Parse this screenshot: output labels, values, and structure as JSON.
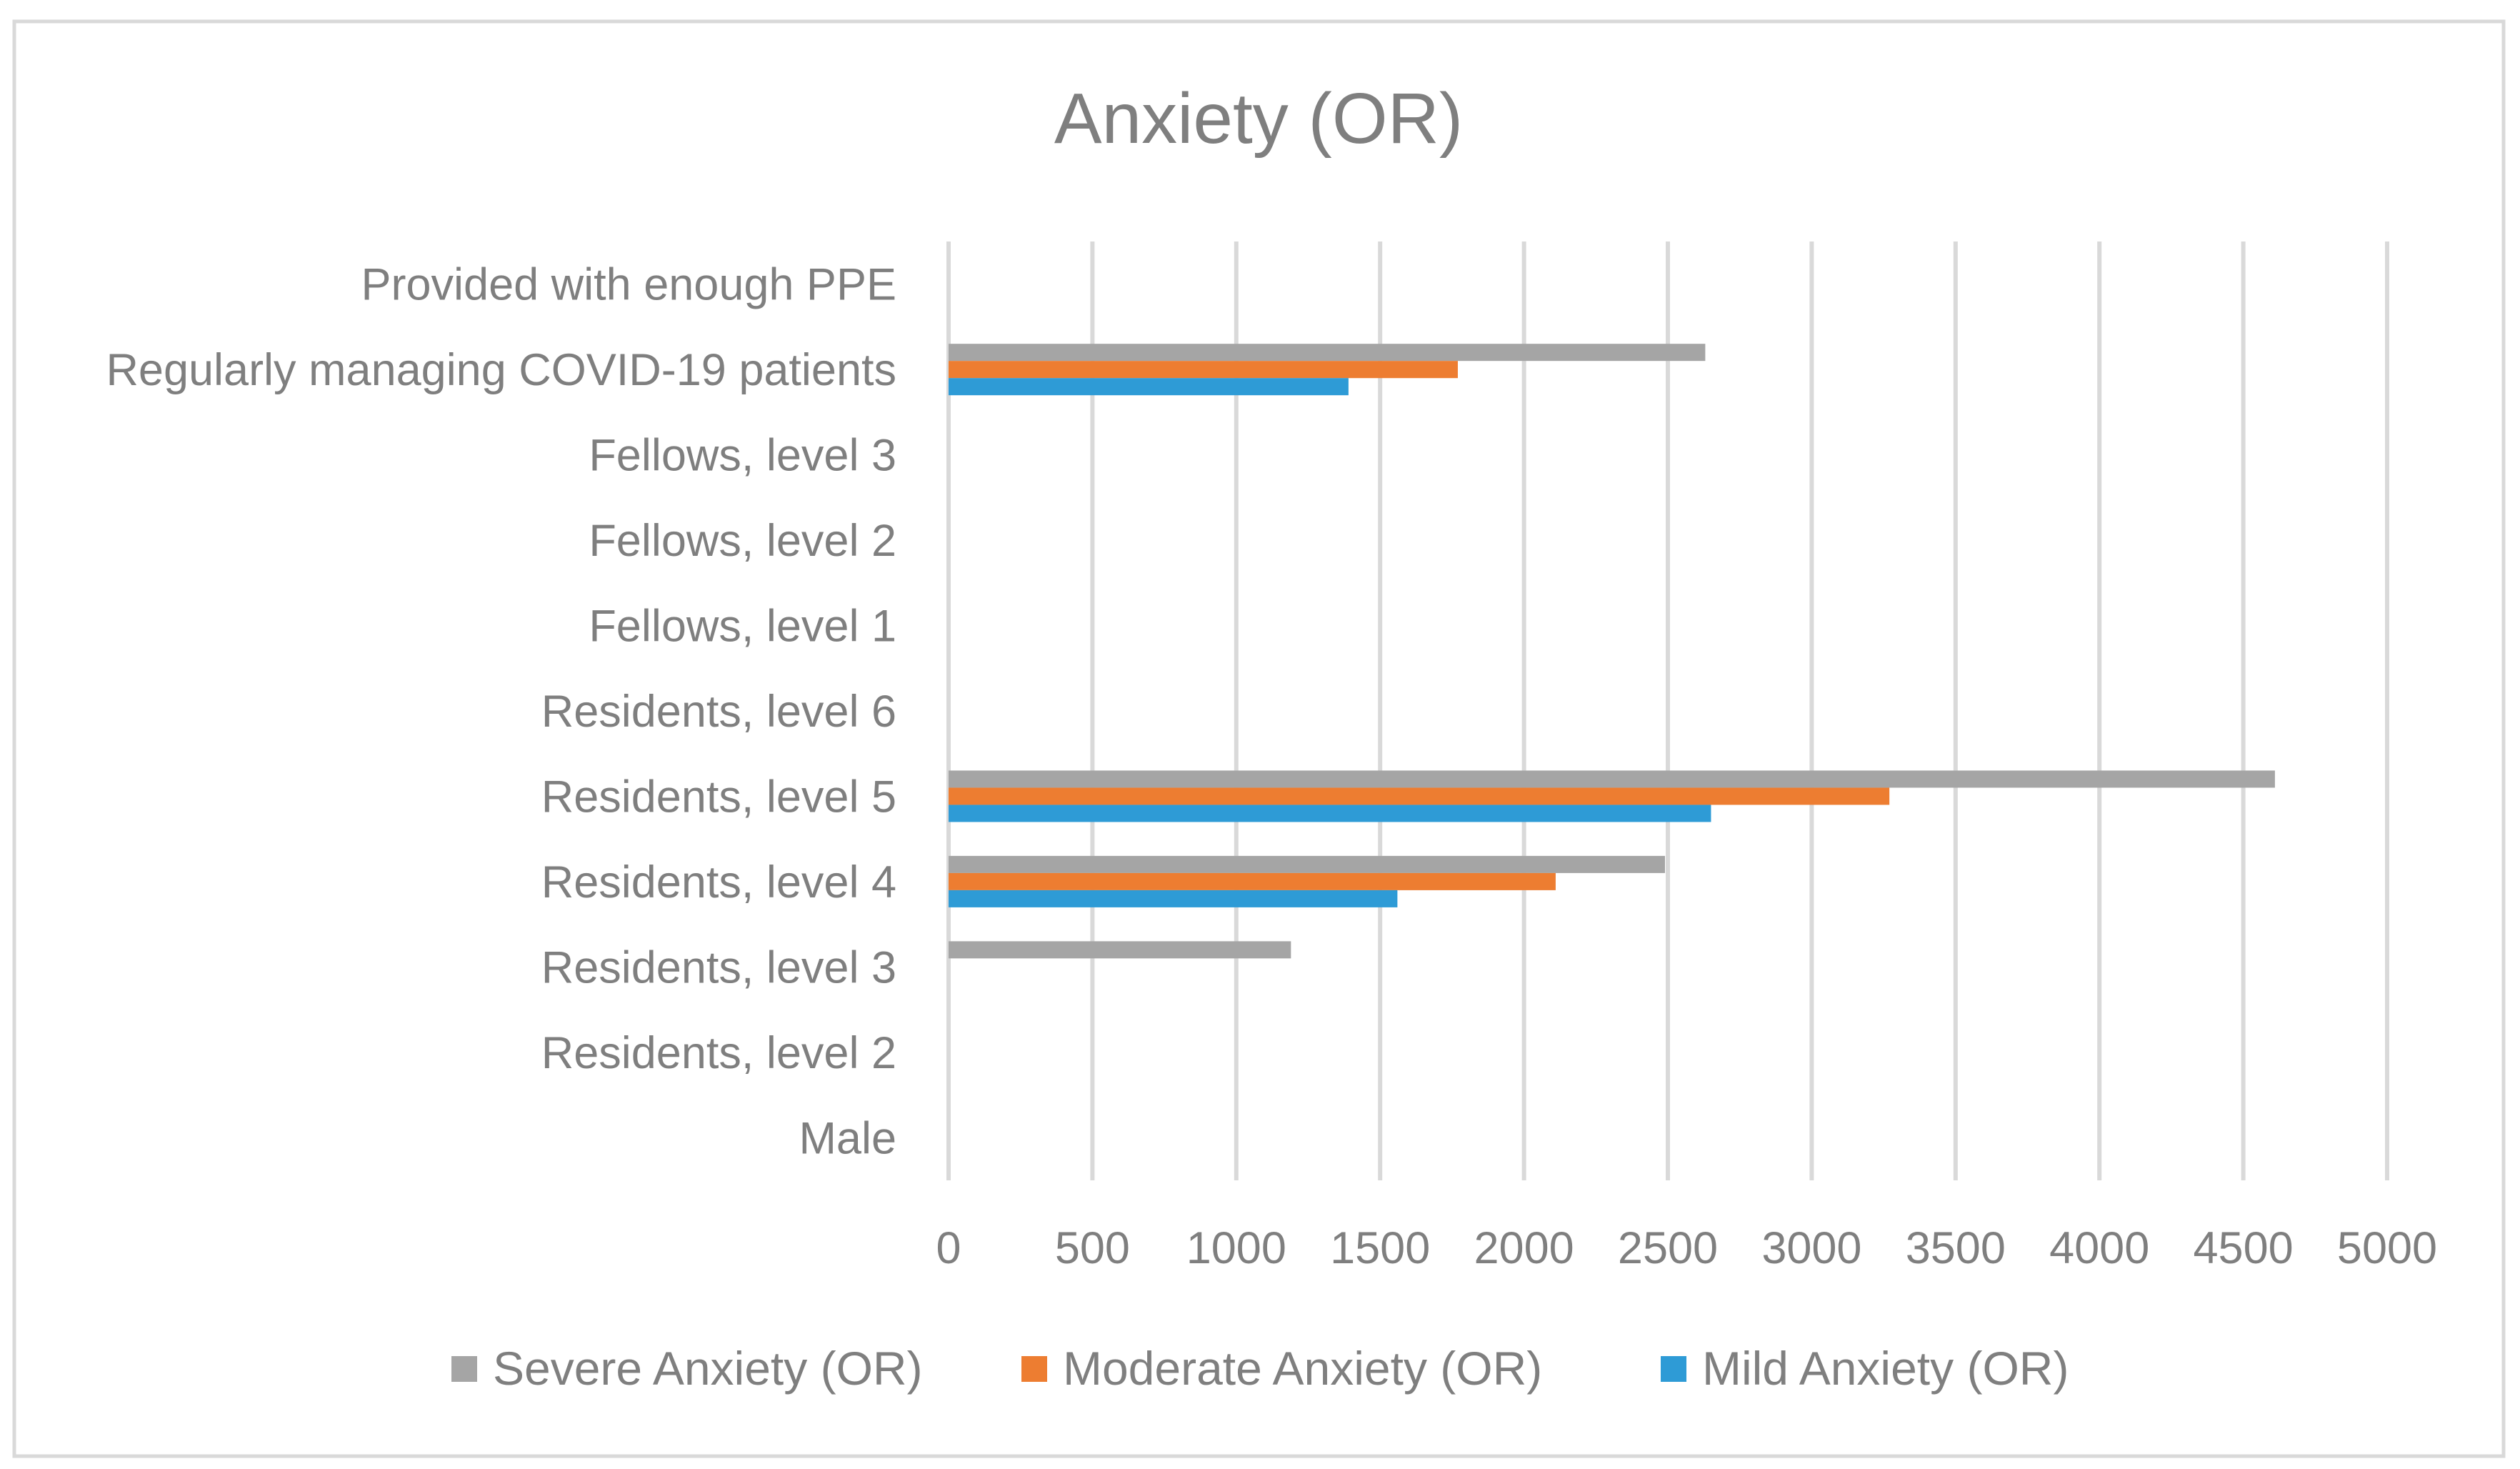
{
  "chart_data": {
    "type": "bar",
    "orientation": "horizontal",
    "title": "Anxiety (OR)",
    "xlabel": "",
    "ylabel": "",
    "xlim": [
      0,
      5000
    ],
    "xticks": [
      0,
      500,
      1000,
      1500,
      2000,
      2500,
      3000,
      3500,
      4000,
      4500,
      5000
    ],
    "grid": true,
    "legend": "bottom",
    "categories": [
      "Provided with enough PPE",
      "Regularly managing COVID-19 patients",
      "Fellows, level 3",
      "Fellows, level 2",
      "Fellows, level 1",
      "Residents, level 6",
      "Residents, level 5",
      "Residents, level 4",
      "Residents, level 3",
      "Residents, level 2",
      "Male"
    ],
    "series": [
      {
        "name": "Severe Anxiety (OR)",
        "color": "#a5a5a5",
        "values": [
          0,
          2630,
          0,
          0,
          0,
          0,
          4610,
          2490,
          1190,
          0,
          0
        ]
      },
      {
        "name": "Moderate Anxiety (OR)",
        "color": "#ed7d31",
        "values": [
          0,
          1770,
          0,
          0,
          0,
          0,
          3270,
          2110,
          0,
          0,
          0
        ]
      },
      {
        "name": "Mild Anxiety (OR)",
        "color": "#2e9bd6",
        "values": [
          0,
          1390,
          0,
          0,
          0,
          0,
          2650,
          1560,
          0,
          0,
          0
        ]
      }
    ]
  }
}
